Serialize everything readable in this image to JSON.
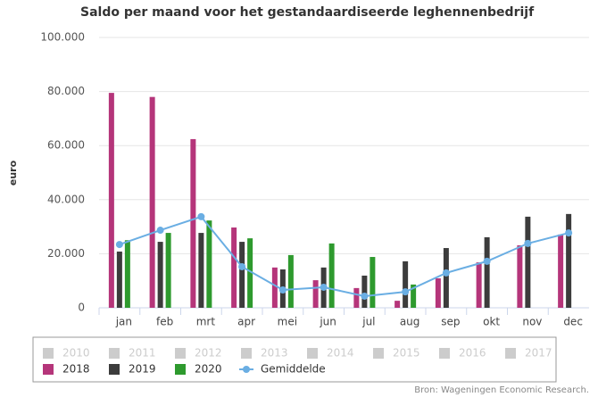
{
  "chart_data": {
    "type": "bar",
    "title": "Saldo per maand voor het gestandaardiseerde leghennenbedrijf",
    "y_label": "euro",
    "source": "Bron: Wageningen Economic Research.",
    "categories": [
      "jan",
      "feb",
      "mrt",
      "apr",
      "mei",
      "jun",
      "jul",
      "aug",
      "sep",
      "okt",
      "nov",
      "dec"
    ],
    "ylim": [
      0,
      100000
    ],
    "yticks": [
      0,
      {
        "value": 20000,
        "label": "20.000"
      },
      {
        "value": 40000,
        "label": "40.000"
      },
      {
        "value": 60000,
        "label": "60.000"
      },
      {
        "value": 80000,
        "label": "80.000"
      },
      {
        "value": 100000,
        "label": "100.000"
      }
    ],
    "grid": true,
    "series": [
      {
        "name": "2010",
        "color": "#cccccc",
        "visible": false,
        "values": [
          null,
          null,
          null,
          null,
          null,
          null,
          null,
          null,
          null,
          null,
          null,
          null
        ]
      },
      {
        "name": "2011",
        "color": "#cccccc",
        "visible": false,
        "values": [
          null,
          null,
          null,
          null,
          null,
          null,
          null,
          null,
          null,
          null,
          null,
          null
        ]
      },
      {
        "name": "2012",
        "color": "#cccccc",
        "visible": false,
        "values": [
          null,
          null,
          null,
          null,
          null,
          null,
          null,
          null,
          null,
          null,
          null,
          null
        ]
      },
      {
        "name": "2013",
        "color": "#cccccc",
        "visible": false,
        "values": [
          null,
          null,
          null,
          null,
          null,
          null,
          null,
          null,
          null,
          null,
          null,
          null
        ]
      },
      {
        "name": "2014",
        "color": "#cccccc",
        "visible": false,
        "values": [
          null,
          null,
          null,
          null,
          null,
          null,
          null,
          null,
          null,
          null,
          null,
          null
        ]
      },
      {
        "name": "2015",
        "color": "#cccccc",
        "visible": false,
        "values": [
          null,
          null,
          null,
          null,
          null,
          null,
          null,
          null,
          null,
          null,
          null,
          null
        ]
      },
      {
        "name": "2016",
        "color": "#cccccc",
        "visible": false,
        "values": [
          null,
          null,
          null,
          null,
          null,
          null,
          null,
          null,
          null,
          null,
          null,
          null
        ]
      },
      {
        "name": "2017",
        "color": "#cccccc",
        "visible": false,
        "values": [
          null,
          null,
          null,
          null,
          null,
          null,
          null,
          null,
          null,
          null,
          null,
          null
        ]
      },
      {
        "name": "2018",
        "color": "#b5357a",
        "visible": true,
        "values": [
          79500,
          78000,
          62400,
          29700,
          14900,
          10200,
          7300,
          2600,
          10900,
          16800,
          23100,
          27100
        ]
      },
      {
        "name": "2019",
        "color": "#3c3c3c",
        "visible": true,
        "values": [
          20800,
          24400,
          27700,
          24400,
          14200,
          14900,
          11900,
          17200,
          22100,
          26100,
          33700,
          34700
        ]
      },
      {
        "name": "2020",
        "color": "#2e9a2e",
        "visible": true,
        "values": [
          25000,
          27700,
          32300,
          25700,
          19500,
          23800,
          18800,
          8600,
          null,
          null,
          null,
          null
        ]
      },
      {
        "name": "Gemiddelde",
        "color": "#6aaee3",
        "visible": true,
        "type": "line",
        "values": [
          23400,
          28700,
          33700,
          15200,
          6600,
          7600,
          4300,
          5900,
          12900,
          17200,
          23800,
          27700
        ]
      }
    ]
  }
}
